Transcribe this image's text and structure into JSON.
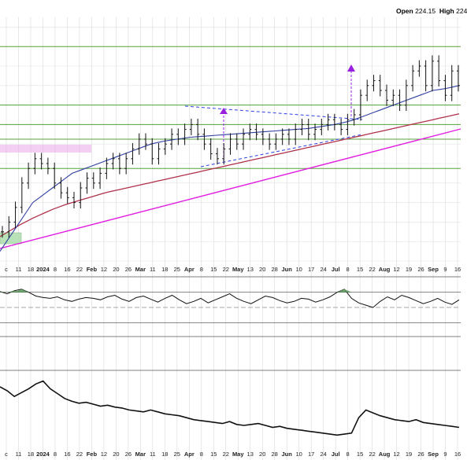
{
  "header": {
    "open_label": "Open",
    "open_value": "224.15",
    "high_label": "High",
    "high_value": "224"
  },
  "chart_data": {
    "type": "candlestick",
    "title": "",
    "xlabel": "",
    "ylabel": "",
    "grid": true,
    "x_tick_labels": [
      "c",
      "11",
      "18",
      "2024",
      "8",
      "16",
      "22",
      "Feb",
      "12",
      "20",
      "26",
      "Mar",
      "11",
      "18",
      "25",
      "Apr",
      "8",
      "15",
      "22",
      "May",
      "13",
      "20",
      "28",
      "Jun",
      "10",
      "17",
      "24",
      "Jul",
      "8",
      "15",
      "22",
      "Aug",
      "12",
      "19",
      "26",
      "Sep",
      "9",
      "16"
    ],
    "price_series": [
      184,
      186,
      189,
      194,
      197,
      199,
      198,
      197,
      194,
      192,
      191,
      190,
      193,
      195,
      194,
      196,
      198,
      199,
      197,
      199,
      201,
      203,
      202,
      199,
      201,
      202,
      204,
      203,
      205,
      206,
      204,
      202,
      200,
      199,
      201,
      203,
      202,
      204,
      205,
      204,
      203,
      202,
      203,
      204,
      203,
      205,
      206,
      204,
      205,
      206,
      207,
      206,
      205,
      207,
      208,
      212,
      214,
      215,
      213,
      211,
      212,
      210,
      214,
      217,
      218,
      214,
      219,
      215,
      212,
      217,
      214
    ],
    "sma50_series": [
      180,
      182,
      184,
      186,
      188,
      190,
      191,
      192,
      193,
      194,
      195,
      196,
      196.5,
      197,
      197.5,
      198,
      198.5,
      199,
      199.5,
      200,
      200.5,
      201,
      201.5,
      202,
      202.3,
      202.6,
      202.8,
      203,
      203.2,
      203.4,
      203.5,
      203.6,
      203.7,
      203.8,
      203.9,
      204,
      204.1,
      204.2,
      204.3,
      204.4,
      204.5,
      204.6,
      204.7,
      204.8,
      204.9,
      205,
      205.1,
      205.2,
      205.4,
      205.6,
      205.8,
      206,
      206.3,
      206.6,
      207,
      207.5,
      208,
      208.5,
      209,
      209.5,
      210,
      210.5,
      211,
      211.5,
      212,
      212.5,
      213,
      213.2,
      213.4,
      213.7,
      214
    ],
    "sma200_series": [
      183,
      183.8,
      184.6,
      185.4,
      186.1,
      186.8,
      187.4,
      188,
      188.6,
      189.1,
      189.6,
      190,
      190.4,
      190.8,
      191.2,
      191.6,
      192,
      192.3,
      192.6,
      192.9,
      193.2,
      193.5,
      193.8,
      194.1,
      194.4,
      194.7,
      195,
      195.3,
      195.6,
      195.9,
      196.2,
      196.5,
      196.8,
      197.1,
      197.4,
      197.7,
      198,
      198.3,
      198.6,
      198.9,
      199.2,
      199.5,
      199.8,
      200.1,
      200.4,
      200.7,
      201,
      201.3,
      201.6,
      201.9,
      202.2,
      202.5,
      202.8,
      203.1,
      203.4,
      203.7,
      204,
      204.3,
      204.6,
      204.9,
      205.2,
      205.5,
      205.8,
      206.1,
      206.4,
      206.7,
      207,
      207.3,
      207.6,
      207.9,
      208.2
    ],
    "horizontal_levels": [
      222,
      210,
      206,
      203,
      197
    ],
    "y_range": [
      178,
      228
    ],
    "indicator1": {
      "values": [
        71,
        68,
        72,
        74,
        70,
        65,
        63,
        62,
        64,
        60,
        58,
        61,
        63,
        62,
        60,
        64,
        66,
        61,
        58,
        63,
        65,
        61,
        57,
        62,
        66,
        60,
        55,
        58,
        62,
        56,
        60,
        64,
        68,
        62,
        58,
        55,
        60,
        65,
        63,
        59,
        56,
        58,
        62,
        61,
        57,
        60,
        64,
        70,
        74,
        62,
        56,
        53,
        50,
        58,
        64,
        60,
        66,
        63,
        59,
        55,
        58,
        62,
        57,
        54,
        60
      ],
      "levels": [
        70,
        50,
        30
      ],
      "range": [
        20,
        80
      ]
    },
    "indicator2": {
      "values": [
        62,
        58,
        52,
        56,
        60,
        65,
        68,
        60,
        55,
        50,
        47,
        45,
        46,
        44,
        42,
        43,
        41,
        40,
        38,
        37,
        36,
        38,
        36,
        34,
        33,
        32,
        30,
        28,
        27,
        26,
        25,
        24,
        26,
        23,
        22,
        23,
        24,
        22,
        20,
        21,
        19,
        18,
        17,
        16,
        15,
        14,
        13,
        12,
        13,
        14,
        30,
        38,
        35,
        32,
        30,
        28,
        27,
        26,
        28,
        25,
        24,
        23,
        22,
        21,
        20
      ],
      "range": [
        0,
        75
      ]
    }
  }
}
